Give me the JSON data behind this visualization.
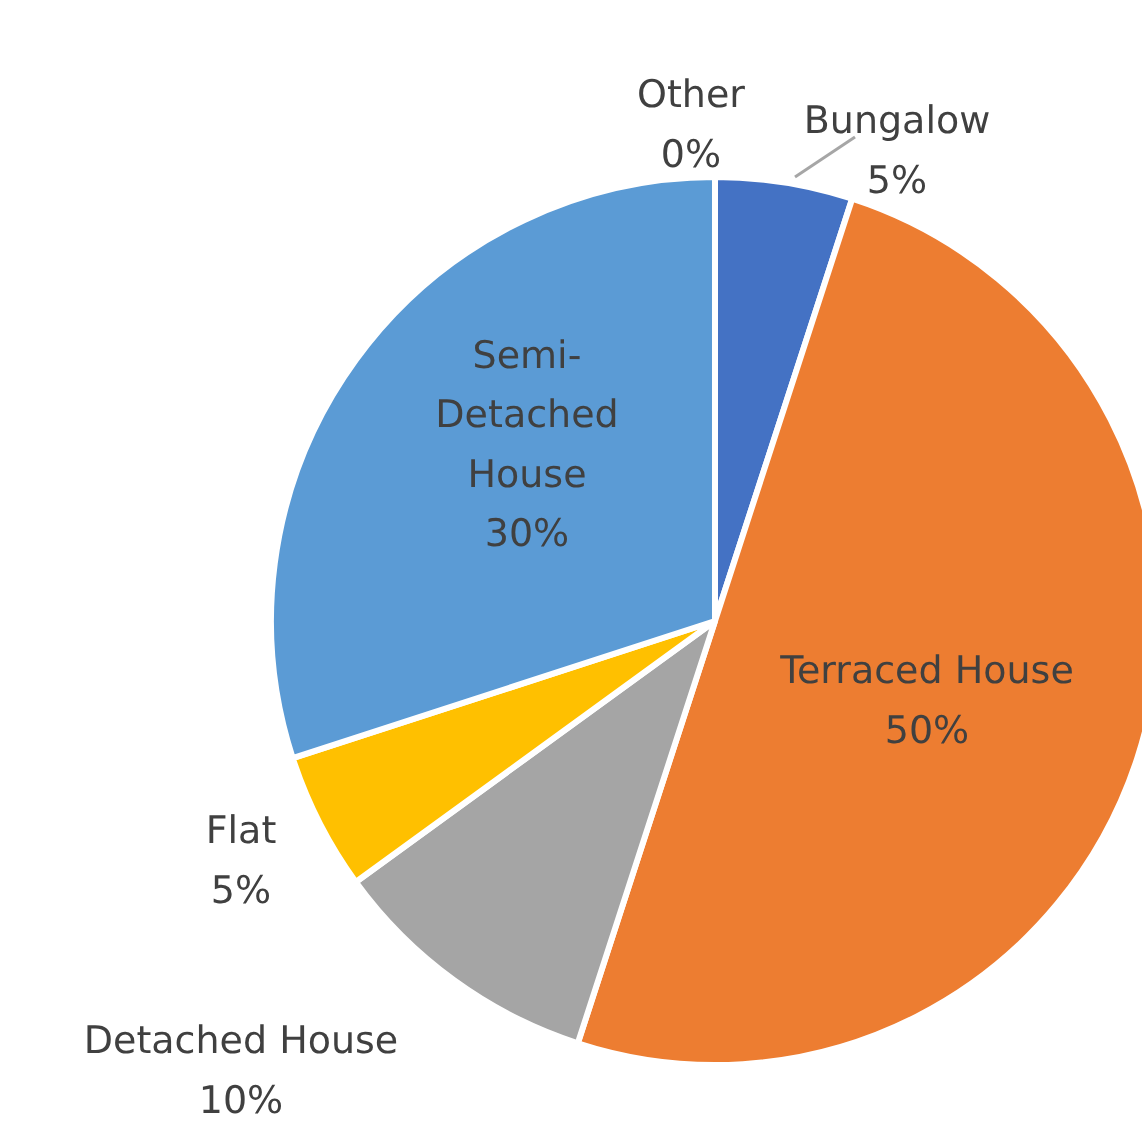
{
  "chart_data": {
    "type": "pie",
    "categories": [
      "Bungalow",
      "Terraced House",
      "Detached House",
      "Flat",
      "Semi-Detached House",
      "Other"
    ],
    "values": [
      5,
      50,
      10,
      5,
      30,
      0
    ],
    "colors": [
      "#4472c4",
      "#ed7d31",
      "#a5a5a5",
      "#ffc000",
      "#5b9bd5",
      "#70ad47"
    ],
    "value_labels": [
      "5%",
      "50%",
      "10%",
      "5%",
      "30%",
      "0%"
    ]
  }
}
